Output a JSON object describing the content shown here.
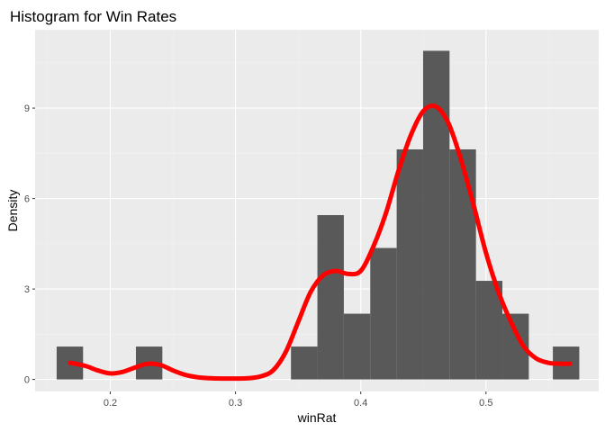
{
  "chart_data": {
    "type": "bar",
    "title": "Histogram for Win Rates",
    "xlabel": "winRat",
    "ylabel": "Density",
    "xlim": [
      0.14,
      0.59
    ],
    "ylim": [
      -0.4,
      11.6
    ],
    "x_ticks": [
      0.2,
      0.3,
      0.4,
      0.5
    ],
    "y_ticks": [
      0,
      3,
      6,
      9
    ],
    "grid": true,
    "legend": "none",
    "bin_width": 0.0211,
    "bars": [
      {
        "x0": 0.1572,
        "x1": 0.1783,
        "density": 1.09
      },
      {
        "x0": 0.2205,
        "x1": 0.2416,
        "density": 1.09
      },
      {
        "x0": 0.3443,
        "x1": 0.3654,
        "density": 1.09
      },
      {
        "x0": 0.3654,
        "x1": 0.3865,
        "density": 5.45
      },
      {
        "x0": 0.3865,
        "x1": 0.4076,
        "density": 2.18
      },
      {
        "x0": 0.4076,
        "x1": 0.4287,
        "density": 4.36
      },
      {
        "x0": 0.4287,
        "x1": 0.4498,
        "density": 7.63
      },
      {
        "x0": 0.4498,
        "x1": 0.4709,
        "density": 10.9
      },
      {
        "x0": 0.4709,
        "x1": 0.492,
        "density": 7.63
      },
      {
        "x0": 0.492,
        "x1": 0.5131,
        "density": 3.27
      },
      {
        "x0": 0.5131,
        "x1": 0.5342,
        "density": 2.18
      },
      {
        "x0": 0.5534,
        "x1": 0.5745,
        "density": 1.09
      }
    ],
    "density_curve": {
      "color": "#ff0000",
      "x": [
        0.168,
        0.18,
        0.19,
        0.2,
        0.21,
        0.22,
        0.23,
        0.24,
        0.25,
        0.26,
        0.27,
        0.28,
        0.29,
        0.3,
        0.31,
        0.32,
        0.33,
        0.34,
        0.35,
        0.36,
        0.37,
        0.38,
        0.39,
        0.4,
        0.41,
        0.42,
        0.43,
        0.44,
        0.45,
        0.46,
        0.47,
        0.48,
        0.49,
        0.5,
        0.51,
        0.52,
        0.53,
        0.54,
        0.55,
        0.56,
        0.567
      ],
      "y": [
        0.55,
        0.45,
        0.3,
        0.2,
        0.25,
        0.4,
        0.52,
        0.48,
        0.3,
        0.15,
        0.07,
        0.04,
        0.03,
        0.03,
        0.04,
        0.1,
        0.3,
        0.9,
        1.9,
        2.9,
        3.45,
        3.6,
        3.5,
        3.6,
        4.4,
        5.5,
        6.9,
        8.1,
        8.9,
        9.05,
        8.5,
        7.3,
        5.8,
        4.2,
        2.9,
        1.9,
        1.1,
        0.7,
        0.55,
        0.52,
        0.52
      ]
    },
    "colors": {
      "panel_background": "#ebebeb",
      "grid_major": "#ffffff",
      "grid_minor": "#f2f2f2",
      "bar_fill": "#595959",
      "curve": "#ff0000"
    }
  }
}
